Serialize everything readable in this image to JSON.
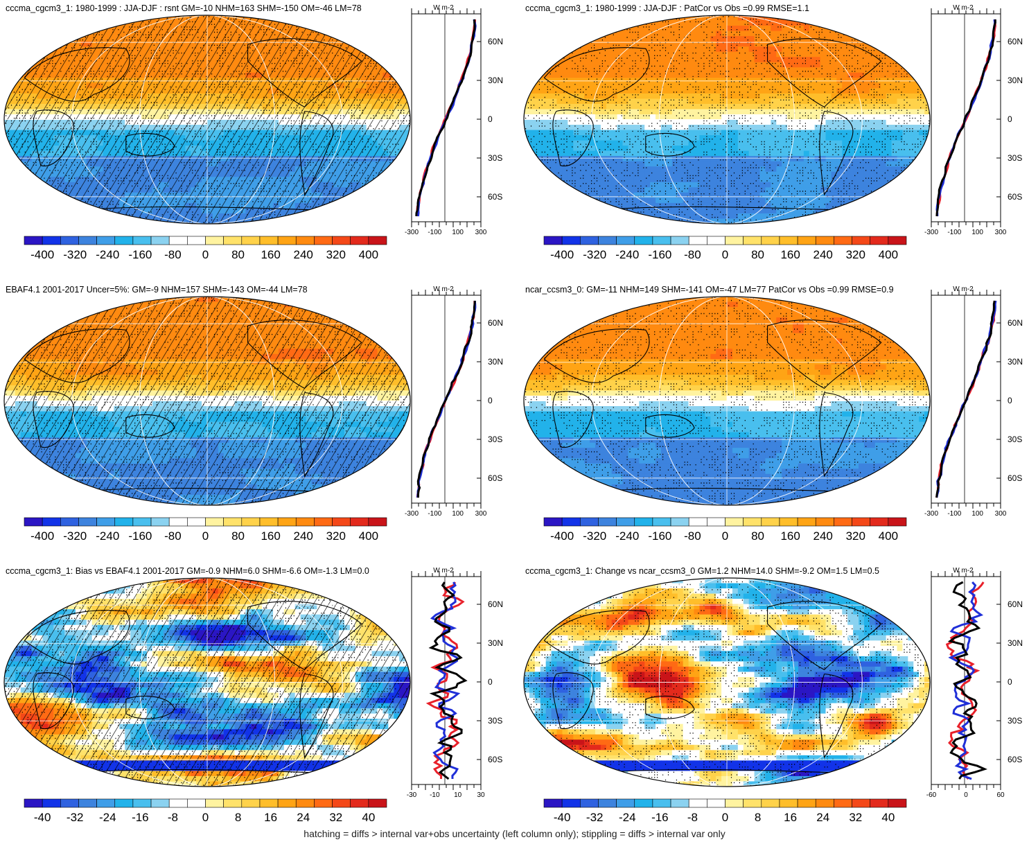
{
  "colors": {
    "scale": [
      "#2b16c4",
      "#1233e8",
      "#2f62e0",
      "#3d83de",
      "#3f9ee8",
      "#22b2ea",
      "#49bfee",
      "#8bd2f0",
      "#ffffff",
      "#ffffff",
      "#fff3a0",
      "#ffe26a",
      "#ffd24a",
      "#ffbe2a",
      "#ffa415",
      "#ff8a10",
      "#ff6a14",
      "#f44818",
      "#e32a1c",
      "#c91419"
    ],
    "profile_obs": "#000000",
    "profile_model": "#1f2fd8",
    "profile_ref": "#e8202a"
  },
  "panels": [
    {
      "id": "model-mean",
      "title": "cccma_cgcm3_1: 1980-1999 : JJA-DJF : rsnt GM=-10 NHM=163 SHM=-150 OM=-46 LM=78",
      "field": "mean",
      "hatched": true,
      "colorbar_ticks": [
        "-400",
        "-320",
        "-240",
        "-160",
        "-80",
        "0",
        "80",
        "160",
        "240",
        "320",
        "400"
      ],
      "profile_unit": "W m-2",
      "profile_xticks": [
        "-300",
        "-100",
        "100",
        "300"
      ],
      "lat_labels": [
        "60N",
        "30N",
        "0",
        "30S",
        "60S"
      ]
    },
    {
      "id": "model-vs-obs",
      "title": "cccma_cgcm3_1: 1980-1999 : JJA-DJF : PatCor vs Obs =0.99 RMSE=1.1",
      "field": "mean",
      "hatched": false,
      "colorbar_ticks": [
        "-400",
        "-320",
        "-240",
        "-160",
        "-80",
        "0",
        "80",
        "160",
        "240",
        "320",
        "400"
      ],
      "profile_unit": "W m-2",
      "profile_xticks": [
        "-300",
        "-100",
        "100",
        "300"
      ],
      "lat_labels": [
        "60N",
        "30N",
        "0",
        "30S",
        "60S"
      ]
    },
    {
      "id": "obs-mean",
      "title": "EBAF4.1 2001-2017 Uncer=5%: GM=-9 NHM=157 SHM=-143 OM=-44 LM=78",
      "field": "mean",
      "hatched": true,
      "colorbar_ticks": [
        "-400",
        "-320",
        "-240",
        "-160",
        "-80",
        "0",
        "80",
        "160",
        "240",
        "320",
        "400"
      ],
      "profile_unit": "W m-2",
      "profile_xticks": [
        "-300",
        "-100",
        "100",
        "300"
      ],
      "lat_labels": [
        "60N",
        "30N",
        "0",
        "30S",
        "60S"
      ]
    },
    {
      "id": "ref-model-mean",
      "title": "ncar_ccsm3_0: GM=-11 NHM=149 SHM=-141 OM=-47 LM=77 PatCor vs Obs =0.99 RMSE=0.9",
      "field": "mean",
      "hatched": false,
      "colorbar_ticks": [
        "-400",
        "-320",
        "-240",
        "-160",
        "-80",
        "0",
        "80",
        "160",
        "240",
        "320",
        "400"
      ],
      "profile_unit": "W m-2",
      "profile_xticks": [
        "-300",
        "-100",
        "100",
        "300"
      ],
      "lat_labels": [
        "60N",
        "30N",
        "0",
        "30S",
        "60S"
      ]
    },
    {
      "id": "bias",
      "title": "cccma_cgcm3_1: Bias vs EBAF4.1 2001-2017 GM=-0.9 NHM=6.0 SHM=-6.6 OM=-1.3 LM=0.0",
      "field": "diff",
      "hatched": true,
      "colorbar_ticks": [
        "-40",
        "-32",
        "-24",
        "-16",
        "-8",
        "0",
        "8",
        "16",
        "24",
        "32",
        "40"
      ],
      "profile_unit": "W m-2",
      "profile_xticks": [
        "-30",
        "-10",
        "10",
        "30"
      ],
      "lat_labels": [
        "60N",
        "30N",
        "0",
        "30S",
        "60S"
      ]
    },
    {
      "id": "change",
      "title": "cccma_cgcm3_1: Change vs ncar_ccsm3_0 GM=1.2 NHM=14.0 SHM=-9.2 OM=1.5 LM=0.5",
      "field": "diff",
      "hatched": false,
      "colorbar_ticks": [
        "-40",
        "-32",
        "-24",
        "-16",
        "-8",
        "0",
        "8",
        "16",
        "24",
        "32",
        "40"
      ],
      "profile_unit": "W m-2",
      "profile_xticks": [
        "-60",
        "0",
        "60"
      ],
      "lat_labels": [
        "60N",
        "30N",
        "0",
        "30S",
        "60S"
      ]
    }
  ],
  "footer": "hatching = diffs > internal var+obs uncertainty (left column only); stippling = diffs > internal var only"
}
